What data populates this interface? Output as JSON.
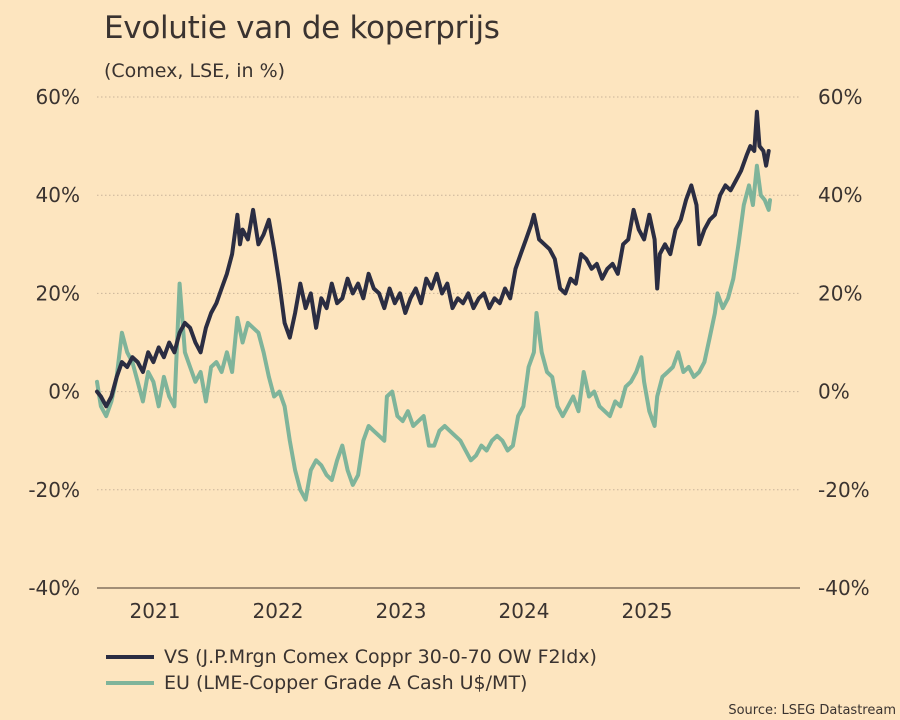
{
  "chart_data": {
    "type": "line",
    "title": "Evolutie van de koperprijs",
    "subtitle": "(Comex, LSE, in %)",
    "xlabel": "",
    "ylabel": "",
    "ylim": [
      -40,
      60
    ],
    "xlim": [
      2020.55,
      2025.75
    ],
    "yticks": [
      60,
      40,
      20,
      0,
      -20,
      -40
    ],
    "ytick_labels": [
      "60%",
      "40%",
      "20%",
      "0%",
      "-20%",
      "-40%"
    ],
    "xticks": [
      2021,
      2022,
      2023,
      2024,
      2025
    ],
    "xtick_labels": [
      "2021",
      "2022",
      "2023",
      "2024",
      "2025"
    ],
    "grid": true,
    "legend_position": "bottom-left",
    "source": "Source: LSEG Datastream",
    "series": [
      {
        "name": "VS (J.P.Mrgn Comex Coppr 30-0-70 OW F2Idx)",
        "color": "#2b2d42",
        "points": [
          [
            2020.55,
            0
          ],
          [
            2020.58,
            -1
          ],
          [
            2020.62,
            -3
          ],
          [
            2020.66,
            -1
          ],
          [
            2020.7,
            3
          ],
          [
            2020.74,
            6
          ],
          [
            2020.78,
            5
          ],
          [
            2020.82,
            7
          ],
          [
            2020.86,
            6
          ],
          [
            2020.9,
            4
          ],
          [
            2020.94,
            8
          ],
          [
            2020.98,
            6
          ],
          [
            2021.02,
            9
          ],
          [
            2021.06,
            7
          ],
          [
            2021.1,
            10
          ],
          [
            2021.14,
            8
          ],
          [
            2021.18,
            12
          ],
          [
            2021.22,
            14
          ],
          [
            2021.26,
            13
          ],
          [
            2021.3,
            10
          ],
          [
            2021.34,
            8
          ],
          [
            2021.38,
            13
          ],
          [
            2021.42,
            16
          ],
          [
            2021.46,
            18
          ],
          [
            2021.5,
            21
          ],
          [
            2021.54,
            24
          ],
          [
            2021.58,
            28
          ],
          [
            2021.62,
            36
          ],
          [
            2021.64,
            30
          ],
          [
            2021.66,
            33
          ],
          [
            2021.7,
            31
          ],
          [
            2021.74,
            37
          ],
          [
            2021.78,
            30
          ],
          [
            2021.82,
            32
          ],
          [
            2021.86,
            35
          ],
          [
            2021.9,
            29
          ],
          [
            2021.94,
            22
          ],
          [
            2021.98,
            14
          ],
          [
            2022.02,
            11
          ],
          [
            2022.06,
            16
          ],
          [
            2022.1,
            22
          ],
          [
            2022.14,
            17
          ],
          [
            2022.18,
            20
          ],
          [
            2022.22,
            13
          ],
          [
            2022.26,
            19
          ],
          [
            2022.3,
            17
          ],
          [
            2022.34,
            22
          ],
          [
            2022.38,
            18
          ],
          [
            2022.42,
            19
          ],
          [
            2022.46,
            23
          ],
          [
            2022.5,
            20
          ],
          [
            2022.54,
            22
          ],
          [
            2022.58,
            19
          ],
          [
            2022.62,
            24
          ],
          [
            2022.66,
            21
          ],
          [
            2022.7,
            20
          ],
          [
            2022.74,
            17
          ],
          [
            2022.78,
            21
          ],
          [
            2022.82,
            18
          ],
          [
            2022.86,
            20
          ],
          [
            2022.9,
            16
          ],
          [
            2022.94,
            19
          ],
          [
            2022.98,
            21
          ],
          [
            2023.02,
            18
          ],
          [
            2023.06,
            23
          ],
          [
            2023.1,
            21
          ],
          [
            2023.14,
            24
          ],
          [
            2023.18,
            20
          ],
          [
            2023.22,
            22
          ],
          [
            2023.26,
            17
          ],
          [
            2023.3,
            19
          ],
          [
            2023.34,
            18
          ],
          [
            2023.38,
            20
          ],
          [
            2023.42,
            17
          ],
          [
            2023.46,
            19
          ],
          [
            2023.5,
            20
          ],
          [
            2023.54,
            17
          ],
          [
            2023.58,
            19
          ],
          [
            2023.62,
            18
          ],
          [
            2023.66,
            21
          ],
          [
            2023.7,
            19
          ],
          [
            2023.74,
            25
          ],
          [
            2023.78,
            28
          ],
          [
            2023.82,
            31
          ],
          [
            2023.86,
            34
          ],
          [
            2023.88,
            36
          ],
          [
            2023.92,
            31
          ],
          [
            2023.96,
            30
          ],
          [
            2024.0,
            29
          ],
          [
            2024.04,
            27
          ],
          [
            2024.08,
            21
          ],
          [
            2024.12,
            20
          ],
          [
            2024.16,
            23
          ],
          [
            2024.2,
            22
          ],
          [
            2024.24,
            28
          ],
          [
            2024.28,
            27
          ],
          [
            2024.32,
            25
          ],
          [
            2024.36,
            26
          ],
          [
            2024.4,
            23
          ],
          [
            2024.44,
            25
          ],
          [
            2024.48,
            26
          ],
          [
            2024.52,
            24
          ],
          [
            2024.56,
            30
          ],
          [
            2024.6,
            31
          ],
          [
            2024.64,
            37
          ],
          [
            2024.68,
            33
          ],
          [
            2024.72,
            31
          ],
          [
            2024.76,
            36
          ],
          [
            2024.8,
            31
          ],
          [
            2024.82,
            21
          ],
          [
            2024.84,
            28
          ],
          [
            2024.88,
            30
          ],
          [
            2024.92,
            28
          ],
          [
            2024.96,
            33
          ],
          [
            2025.0,
            35
          ],
          [
            2025.04,
            39
          ],
          [
            2025.08,
            42
          ],
          [
            2025.12,
            38
          ],
          [
            2025.14,
            30
          ],
          [
            2025.18,
            33
          ],
          [
            2025.22,
            35
          ],
          [
            2025.26,
            36
          ],
          [
            2025.3,
            40
          ],
          [
            2025.34,
            42
          ],
          [
            2025.38,
            41
          ],
          [
            2025.42,
            43
          ],
          [
            2025.46,
            45
          ],
          [
            2025.5,
            48
          ],
          [
            2025.53,
            50
          ],
          [
            2025.56,
            49
          ],
          [
            2025.58,
            57
          ],
          [
            2025.6,
            50
          ],
          [
            2025.63,
            49
          ],
          [
            2025.65,
            46
          ],
          [
            2025.67,
            49
          ]
        ]
      },
      {
        "name": "EU (LME-Copper Grade A Cash U$/MT)",
        "color": "#7fb49a",
        "points": [
          [
            2020.55,
            2
          ],
          [
            2020.58,
            -3
          ],
          [
            2020.62,
            -5
          ],
          [
            2020.66,
            -2
          ],
          [
            2020.7,
            3
          ],
          [
            2020.74,
            12
          ],
          [
            2020.78,
            8
          ],
          [
            2020.82,
            6
          ],
          [
            2020.86,
            2
          ],
          [
            2020.9,
            -2
          ],
          [
            2020.94,
            4
          ],
          [
            2020.98,
            2
          ],
          [
            2021.02,
            -3
          ],
          [
            2021.06,
            3
          ],
          [
            2021.1,
            -1
          ],
          [
            2021.14,
            -3
          ],
          [
            2021.18,
            22
          ],
          [
            2021.22,
            8
          ],
          [
            2021.26,
            5
          ],
          [
            2021.3,
            2
          ],
          [
            2021.34,
            4
          ],
          [
            2021.38,
            -2
          ],
          [
            2021.42,
            5
          ],
          [
            2021.46,
            6
          ],
          [
            2021.5,
            4
          ],
          [
            2021.54,
            8
          ],
          [
            2021.58,
            4
          ],
          [
            2021.62,
            15
          ],
          [
            2021.66,
            10
          ],
          [
            2021.7,
            14
          ],
          [
            2021.74,
            13
          ],
          [
            2021.78,
            12
          ],
          [
            2021.82,
            8
          ],
          [
            2021.86,
            3
          ],
          [
            2021.9,
            -1
          ],
          [
            2021.94,
            0
          ],
          [
            2021.98,
            -3
          ],
          [
            2022.02,
            -10
          ],
          [
            2022.06,
            -16
          ],
          [
            2022.1,
            -20
          ],
          [
            2022.14,
            -22
          ],
          [
            2022.18,
            -16
          ],
          [
            2022.22,
            -14
          ],
          [
            2022.26,
            -15
          ],
          [
            2022.3,
            -17
          ],
          [
            2022.34,
            -18
          ],
          [
            2022.38,
            -14
          ],
          [
            2022.42,
            -11
          ],
          [
            2022.46,
            -16
          ],
          [
            2022.5,
            -19
          ],
          [
            2022.54,
            -17
          ],
          [
            2022.58,
            -10
          ],
          [
            2022.62,
            -7
          ],
          [
            2022.66,
            -8
          ],
          [
            2022.7,
            -9
          ],
          [
            2022.74,
            -10
          ],
          [
            2022.76,
            -1
          ],
          [
            2022.8,
            0
          ],
          [
            2022.84,
            -5
          ],
          [
            2022.88,
            -6
          ],
          [
            2022.92,
            -4
          ],
          [
            2022.96,
            -7
          ],
          [
            2023.0,
            -6
          ],
          [
            2023.04,
            -5
          ],
          [
            2023.08,
            -11
          ],
          [
            2023.12,
            -11
          ],
          [
            2023.16,
            -8
          ],
          [
            2023.2,
            -7
          ],
          [
            2023.24,
            -8
          ],
          [
            2023.28,
            -9
          ],
          [
            2023.32,
            -10
          ],
          [
            2023.36,
            -12
          ],
          [
            2023.4,
            -14
          ],
          [
            2023.44,
            -13
          ],
          [
            2023.48,
            -11
          ],
          [
            2023.52,
            -12
          ],
          [
            2023.56,
            -10
          ],
          [
            2023.6,
            -9
          ],
          [
            2023.64,
            -10
          ],
          [
            2023.68,
            -12
          ],
          [
            2023.72,
            -11
          ],
          [
            2023.76,
            -5
          ],
          [
            2023.8,
            -3
          ],
          [
            2023.84,
            5
          ],
          [
            2023.88,
            8
          ],
          [
            2023.9,
            16
          ],
          [
            2023.94,
            8
          ],
          [
            2023.98,
            4
          ],
          [
            2024.02,
            3
          ],
          [
            2024.06,
            -3
          ],
          [
            2024.1,
            -5
          ],
          [
            2024.14,
            -3
          ],
          [
            2024.18,
            -1
          ],
          [
            2024.22,
            -4
          ],
          [
            2024.26,
            4
          ],
          [
            2024.3,
            -1
          ],
          [
            2024.34,
            0
          ],
          [
            2024.38,
            -3
          ],
          [
            2024.42,
            -4
          ],
          [
            2024.46,
            -5
          ],
          [
            2024.5,
            -2
          ],
          [
            2024.54,
            -3
          ],
          [
            2024.58,
            1
          ],
          [
            2024.62,
            2
          ],
          [
            2024.66,
            4
          ],
          [
            2024.7,
            7
          ],
          [
            2024.72,
            2
          ],
          [
            2024.76,
            -4
          ],
          [
            2024.8,
            -7
          ],
          [
            2024.82,
            -1
          ],
          [
            2024.86,
            3
          ],
          [
            2024.9,
            4
          ],
          [
            2024.94,
            5
          ],
          [
            2024.98,
            8
          ],
          [
            2025.02,
            4
          ],
          [
            2025.06,
            5
          ],
          [
            2025.1,
            3
          ],
          [
            2025.14,
            4
          ],
          [
            2025.18,
            6
          ],
          [
            2025.22,
            11
          ],
          [
            2025.26,
            16
          ],
          [
            2025.28,
            20
          ],
          [
            2025.32,
            17
          ],
          [
            2025.36,
            19
          ],
          [
            2025.4,
            23
          ],
          [
            2025.44,
            30
          ],
          [
            2025.48,
            38
          ],
          [
            2025.52,
            42
          ],
          [
            2025.55,
            38
          ],
          [
            2025.58,
            46
          ],
          [
            2025.61,
            40
          ],
          [
            2025.64,
            39
          ],
          [
            2025.67,
            37
          ],
          [
            2025.68,
            39
          ]
        ]
      }
    ]
  }
}
